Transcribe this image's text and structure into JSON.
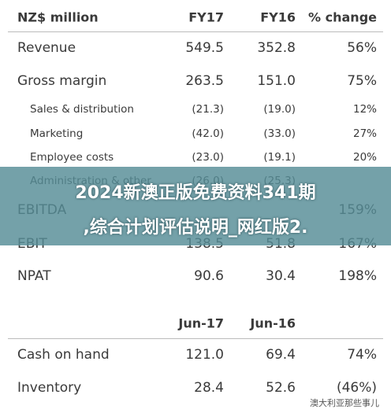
{
  "table": {
    "header": [
      "NZ$ million",
      "FY17",
      "FY16",
      "% change"
    ],
    "rows": [
      [
        "Revenue",
        "549.5",
        "352.8",
        "56%"
      ],
      [
        "Gross margin",
        "263.5",
        "151.0",
        "75%"
      ],
      [
        "Sales & distribution",
        "(21.3)",
        "(19.0)",
        "12%"
      ],
      [
        "Marketing",
        "(42.0)",
        "(33.0)",
        "27%"
      ],
      [
        "Employee costs",
        "(23.0)",
        "(19.1)",
        "20%"
      ],
      [
        "Administration & other",
        "(26.0)",
        "(25.3)",
        null
      ],
      [
        "EBITDA",
        null,
        null,
        "159%"
      ],
      [
        "EBIT",
        "138.5",
        "51.8",
        "167%"
      ],
      [
        "NPAT",
        "90.6",
        "30.4",
        "198%"
      ]
    ],
    "subheader": [
      "Jun-17",
      "Jun-16"
    ],
    "rows2": [
      [
        "Cash on hand",
        "121.0",
        "69.4",
        "74%"
      ],
      [
        "Inventory",
        "28.4",
        "52.6",
        "(46%)"
      ]
    ]
  },
  "banner": {
    "lines": [
      "2024新澳正版免费资料341期",
      ",综合计划评估说明_网红版2."
    ]
  },
  "watermark": "澳大利亚那些事儿"
}
